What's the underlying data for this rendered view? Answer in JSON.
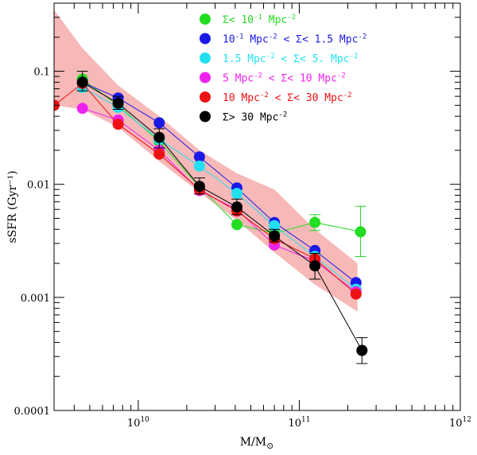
{
  "chart_data": {
    "type": "scatter",
    "title": "",
    "xlabel": "M/M⊙",
    "ylabel": "sSFR (Gyr⁻¹)",
    "xscale": "log",
    "yscale": "log",
    "xlim": [
      3000000000.0,
      1000000000000.0
    ],
    "ylim": [
      0.0001,
      0.4
    ],
    "x_tick_labels": [
      {
        "value": 10000000000.0,
        "base": "10",
        "exp": "10"
      },
      {
        "value": 100000000000.0,
        "base": "10",
        "exp": "11"
      },
      {
        "value": 1000000000000.0,
        "base": "10",
        "exp": "12"
      }
    ],
    "y_tick_labels": [
      {
        "value": 0.0001,
        "label": "0.0001"
      },
      {
        "value": 0.001,
        "label": "0.001"
      },
      {
        "value": 0.01,
        "label": "0.01"
      },
      {
        "value": 0.1,
        "label": "0.1"
      }
    ],
    "band": {
      "color": "#f7b8b8",
      "x": [
        3000000000.0,
        4500000000.0,
        7500000000.0,
        13500000000.0,
        24000000000.0,
        41000000000.0,
        70000000000.0,
        125000000000.0,
        230000000000.0
      ],
      "upper": [
        0.35,
        0.16,
        0.075,
        0.04,
        0.02,
        0.0125,
        0.009,
        0.004,
        0.002
      ],
      "lower": [
        0.05,
        0.046,
        0.032,
        0.016,
        0.0085,
        0.0048,
        0.0025,
        0.0013,
        0.00075
      ]
    },
    "legend_position": "top-right",
    "series": [
      {
        "name": "green",
        "color": "#22dd22",
        "parts": [
          {
            "text": "Σ< 10"
          },
          {
            "sup": "-1"
          },
          {
            "text": " Mpc"
          },
          {
            "sup": "-2"
          }
        ],
        "x": [
          4500000000.0,
          7500000000.0,
          13500000000.0,
          24000000000.0,
          41000000000.0,
          70000000000.0,
          125000000000.0,
          240000000000.0
        ],
        "y": [
          0.085,
          0.05,
          0.024,
          0.0095,
          0.0044,
          0.0037,
          0.0046,
          0.0038
        ],
        "err_lo": [
          null,
          null,
          null,
          null,
          null,
          null,
          0.0039,
          0.0023
        ],
        "err_hi": [
          null,
          null,
          null,
          null,
          null,
          null,
          0.0054,
          0.0064
        ]
      },
      {
        "name": "blue",
        "color": "#1a1ae6",
        "parts": [
          {
            "text": "10"
          },
          {
            "sup": "-1"
          },
          {
            "text": " Mpc"
          },
          {
            "sup": "-2"
          },
          {
            "text": " < Σ< 1.5 Mpc"
          },
          {
            "sup": "-2"
          }
        ],
        "x": [
          4500000000.0,
          7500000000.0,
          13500000000.0,
          24000000000.0,
          41000000000.0,
          70000000000.0,
          125000000000.0,
          225000000000.0
        ],
        "y": [
          0.08,
          0.058,
          0.035,
          0.0175,
          0.0093,
          0.0046,
          0.0026,
          0.00135
        ],
        "err_lo": [
          null,
          null,
          null,
          null,
          null,
          null,
          null,
          null
        ],
        "err_hi": [
          null,
          null,
          null,
          null,
          null,
          null,
          null,
          null
        ]
      },
      {
        "name": "cyan",
        "color": "#22e0f0",
        "parts": [
          {
            "text": "1.5 Mpc"
          },
          {
            "sup": "-2"
          },
          {
            "text": " < Σ< 5. Mpc"
          },
          {
            "sup": "-2"
          }
        ],
        "x": [
          4500000000.0,
          7500000000.0,
          13500000000.0,
          24000000000.0,
          41000000000.0,
          70000000000.0,
          125000000000.0,
          225000000000.0
        ],
        "y": [
          0.072,
          0.048,
          0.025,
          0.0145,
          0.0083,
          0.0043,
          0.0023,
          0.00118
        ],
        "err_lo": [
          null,
          null,
          null,
          null,
          null,
          null,
          null,
          null
        ],
        "err_hi": [
          null,
          null,
          null,
          null,
          null,
          null,
          null,
          null
        ]
      },
      {
        "name": "magenta",
        "color": "#ee22ee",
        "parts": [
          {
            "text": "5 Mpc"
          },
          {
            "sup": "-2"
          },
          {
            "text": " < Σ< 10 Mpc"
          },
          {
            "sup": "-2"
          }
        ],
        "x": [
          4500000000.0,
          7500000000.0,
          13500000000.0,
          24000000000.0,
          41000000000.0,
          70000000000.0,
          125000000000.0,
          225000000000.0
        ],
        "y": [
          0.047,
          0.037,
          0.02,
          0.0088,
          0.006,
          0.0029,
          0.0021,
          0.00112
        ],
        "err_lo": [
          null,
          null,
          null,
          null,
          null,
          null,
          null,
          null
        ],
        "err_hi": [
          null,
          null,
          null,
          null,
          null,
          null,
          null,
          null
        ]
      },
      {
        "name": "red",
        "color": "#ee1111",
        "parts": [
          {
            "text": "10 Mpc"
          },
          {
            "sup": "-2"
          },
          {
            "text": " < Σ< 30 Mpc"
          },
          {
            "sup": "-2"
          }
        ],
        "x": [
          3000000000.0,
          4500000000.0,
          7500000000.0,
          13500000000.0,
          24000000000.0,
          41000000000.0,
          70000000000.0,
          125000000000.0,
          225000000000.0
        ],
        "y": [
          0.05,
          0.078,
          0.034,
          0.0185,
          0.009,
          0.0058,
          0.0033,
          0.0022,
          0.00107
        ],
        "err_lo": [
          null,
          null,
          null,
          null,
          null,
          null,
          null,
          null,
          null
        ],
        "err_hi": [
          null,
          null,
          null,
          null,
          null,
          null,
          null,
          null,
          null
        ]
      },
      {
        "name": "black",
        "color": "#000000",
        "parts": [
          {
            "text": "Σ> 30 Mpc"
          },
          {
            "sup": "-2"
          }
        ],
        "x": [
          4500000000.0,
          7500000000.0,
          13500000000.0,
          24000000000.0,
          41000000000.0,
          70000000000.0,
          125000000000.0,
          245000000000.0
        ],
        "y": [
          0.08,
          0.052,
          0.026,
          0.0096,
          0.0063,
          0.0035,
          0.0019,
          0.00034
        ],
        "err_lo": [
          0.067,
          0.046,
          0.021,
          0.0082,
          0.0054,
          0.0031,
          0.00145,
          0.00026
        ],
        "err_hi": [
          0.1,
          0.06,
          0.031,
          0.0114,
          0.0074,
          0.004,
          0.00245,
          0.00044
        ]
      }
    ]
  }
}
